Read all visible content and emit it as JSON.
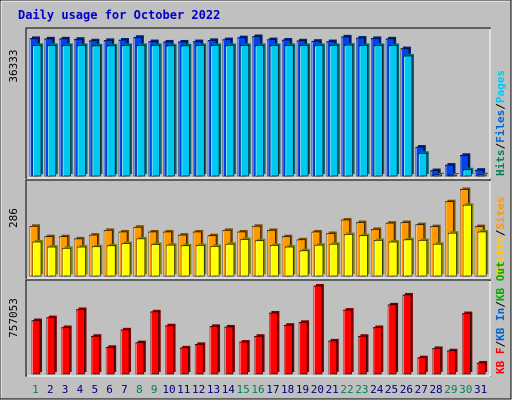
{
  "chart_data": {
    "type": "bar",
    "title": "Daily usage for October 2022",
    "categories": [
      "1",
      "2",
      "3",
      "4",
      "5",
      "6",
      "7",
      "8",
      "9",
      "10",
      "11",
      "12",
      "13",
      "14",
      "15",
      "16",
      "17",
      "18",
      "19",
      "20",
      "21",
      "22",
      "23",
      "24",
      "25",
      "26",
      "27",
      "28",
      "29",
      "30",
      "31"
    ],
    "weekend_days": [
      1,
      8,
      9,
      15,
      16,
      22,
      23,
      29,
      30
    ],
    "panels": [
      {
        "name": "pages-files-hits",
        "max_label": "36333",
        "ymax": 36333,
        "series": [
          {
            "name": "Hits",
            "color": "#0044ee",
            "values": [
              35200,
              35100,
              35100,
              35000,
              34600,
              34700,
              34800,
              35500,
              34400,
              34300,
              34300,
              34400,
              34700,
              34900,
              35400,
              35700,
              34900,
              34800,
              34600,
              34500,
              34400,
              35600,
              35300,
              35200,
              35100,
              32600,
              7400,
              1400,
              2800,
              5300,
              1500
            ]
          },
          {
            "name": "Files",
            "color": "#0066cc",
            "values": [
              0,
              0,
              0,
              0,
              0,
              0,
              0,
              0,
              0,
              0,
              0,
              0,
              0,
              0,
              0,
              0,
              0,
              0,
              0,
              0,
              0,
              0,
              0,
              0,
              0,
              0,
              0,
              0,
              0,
              0,
              0
            ]
          },
          {
            "name": "Pages",
            "color": "#00c8f0",
            "values": [
              33400,
              33400,
              33400,
              33400,
              33300,
              33300,
              33400,
              33400,
              33400,
              33300,
              33300,
              33400,
              33400,
              33400,
              33400,
              33400,
              33400,
              33400,
              33400,
              33400,
              33400,
              33500,
              33400,
              33400,
              33400,
              30700,
              5800,
              300,
              200,
              1600,
              300
            ]
          }
        ],
        "legend": [
          {
            "text": "Hits",
            "color": "#00805c"
          },
          {
            "text": "/",
            "color": "#000000"
          },
          {
            "text": "Files",
            "color": "#0066cc"
          },
          {
            "text": "/",
            "color": "#000000"
          },
          {
            "text": "Pages",
            "color": "#00c8f0"
          }
        ]
      },
      {
        "name": "visits-sites",
        "max_label": "286",
        "ymax": 286,
        "series": [
          {
            "name": "Visits",
            "color": "#ff9900",
            "values": [
              158,
              125,
              125,
              118,
              130,
              145,
              140,
              155,
              140,
              140,
              130,
              140,
              128,
              145,
              140,
              158,
              145,
              125,
              115,
              140,
              135,
              178,
              170,
              148,
              168,
              170,
              163,
              157,
              236,
              275,
              157
            ]
          },
          {
            "name": "Sites",
            "color": "#ffff00",
            "values": [
              108,
              92,
              88,
              92,
              93,
              96,
              103,
              118,
              100,
              98,
              96,
              97,
              94,
              101,
              116,
              112,
              97,
              92,
              80,
              98,
              101,
              132,
              128,
              113,
              108,
              115,
              113,
              101,
              136,
              225,
              140
            ]
          }
        ],
        "legend": [
          {
            "text": "Visits",
            "color": "#ffcc00"
          },
          {
            "text": "/",
            "color": "#000000"
          },
          {
            "text": "Sites",
            "color": "#ff9900"
          }
        ]
      },
      {
        "name": "kbytes",
        "max_label": "757053",
        "ymax": 757053,
        "series": [
          {
            "name": "KBytes",
            "color": "#ff0000",
            "values": [
              460000,
              485000,
              400000,
              555000,
              325000,
              230000,
              380000,
              270000,
              535000,
              415000,
              225000,
              255000,
              410000,
              405000,
              275000,
              325000,
              525000,
              420000,
              445000,
              757053,
              285000,
              550000,
              325000,
              400000,
              595000,
              680000,
              140000,
              220000,
              200000,
              520000,
              95000
            ]
          }
        ],
        "legend": [
          {
            "text": "KB F",
            "color": "#ff0000"
          },
          {
            "text": "/",
            "color": "#000000"
          },
          {
            "text": "KB In",
            "color": "#0066cc"
          },
          {
            "text": "/",
            "color": "#000000"
          },
          {
            "text": "KB Out",
            "color": "#00aa00"
          }
        ]
      }
    ],
    "grid": false,
    "legend_placement": "right"
  },
  "colors": {
    "background": "#c0c0c0",
    "title": "#0000cc",
    "label_weekday": "#000080",
    "label_weekend": "#00805c"
  }
}
